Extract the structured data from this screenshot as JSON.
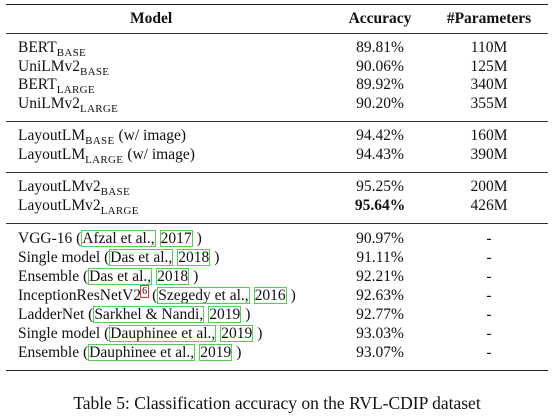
{
  "table": {
    "header": [
      "Model",
      "Accuracy",
      "#Parameters"
    ],
    "groups": [
      {
        "rows": [
          {
            "model": [
              {
                "text": "BERT"
              },
              {
                "text": "BASE",
                "style": "sub"
              }
            ],
            "accuracy": "89.81%",
            "parameters": "110M"
          },
          {
            "model": [
              {
                "text": "UniLMv2"
              },
              {
                "text": "BASE",
                "style": "sub"
              }
            ],
            "accuracy": "90.06%",
            "parameters": "125M"
          },
          {
            "model": [
              {
                "text": "BERT"
              },
              {
                "text": "LARGE",
                "style": "sub"
              }
            ],
            "accuracy": "89.92%",
            "parameters": "340M"
          },
          {
            "model": [
              {
                "text": "UniLMv2"
              },
              {
                "text": "LARGE",
                "style": "sub"
              }
            ],
            "accuracy": "90.20%",
            "parameters": "355M"
          }
        ]
      },
      {
        "rows": [
          {
            "model": [
              {
                "text": "LayoutLM"
              },
              {
                "text": "BASE",
                "style": "sub"
              },
              {
                "text": "(w/ image)"
              }
            ],
            "accuracy": "94.42%",
            "parameters": "160M"
          },
          {
            "model": [
              {
                "text": "LayoutLM"
              },
              {
                "text": "LARGE",
                "style": "sub"
              },
              {
                "text": "(w/ image)"
              }
            ],
            "accuracy": "94.43%",
            "parameters": "390M"
          }
        ]
      },
      {
        "rows": [
          {
            "model": [
              {
                "text": "LayoutLMv2"
              },
              {
                "text": "BASE",
                "style": "sub"
              }
            ],
            "accuracy": "95.25%",
            "parameters": "200M"
          },
          {
            "model": [
              {
                "text": "LayoutLMv2"
              },
              {
                "text": "LARGE",
                "style": "sub"
              }
            ],
            "accuracy": "95.64%",
            "bold": true,
            "parameters": "426M"
          }
        ]
      },
      {
        "rows": [
          {
            "model": [
              {
                "text": "VGG-16 ("
              },
              {
                "text": "Afzal et al.,",
                "style": "cite"
              },
              {
                "text": "2017",
                "style": "cite"
              },
              {
                "text": ")"
              }
            ],
            "accuracy": "90.97%",
            "parameters": "-"
          },
          {
            "model": [
              {
                "text": "Single model ("
              },
              {
                "text": "Das et al.,",
                "style": "cite"
              },
              {
                "text": "2018",
                "style": "cite"
              },
              {
                "text": ")"
              }
            ],
            "accuracy": "91.11%",
            "parameters": "-"
          },
          {
            "model": [
              {
                "text": "Ensemble ("
              },
              {
                "text": "Das et al.,",
                "style": "cite"
              },
              {
                "text": "2018",
                "style": "cite"
              },
              {
                "text": ")"
              }
            ],
            "accuracy": "92.21%",
            "parameters": "-"
          },
          {
            "model": [
              {
                "text": "InceptionResNetV2"
              },
              {
                "text": "6",
                "style": "sup"
              },
              {
                "text": "("
              },
              {
                "text": "Szegedy et al.,",
                "style": "cite"
              },
              {
                "text": "2016",
                "style": "cite"
              },
              {
                "text": ")"
              }
            ],
            "accuracy": "92.63%",
            "parameters": "-"
          },
          {
            "model": [
              {
                "text": "LadderNet ("
              },
              {
                "text": "Sarkhel & Nandi,",
                "style": "cite"
              },
              {
                "text": "2019",
                "style": "cite"
              },
              {
                "text": ")"
              }
            ],
            "accuracy": "92.77%",
            "parameters": "-"
          },
          {
            "model": [
              {
                "text": "Single model ("
              },
              {
                "text": "Dauphinee et al.,",
                "style": "cite"
              },
              {
                "text": "2019",
                "style": "cite"
              },
              {
                "text": ")"
              }
            ],
            "accuracy": "93.03%",
            "parameters": "-"
          },
          {
            "model": [
              {
                "text": "Ensemble ("
              },
              {
                "text": "Dauphinee et al.,",
                "style": "cite"
              },
              {
                "text": "2019",
                "style": "cite"
              },
              {
                "text": ")"
              }
            ],
            "accuracy": "93.07%",
            "parameters": "-"
          }
        ]
      }
    ],
    "caption": "Table 5: Classification accuracy on the RVL-CDIP dataset"
  }
}
